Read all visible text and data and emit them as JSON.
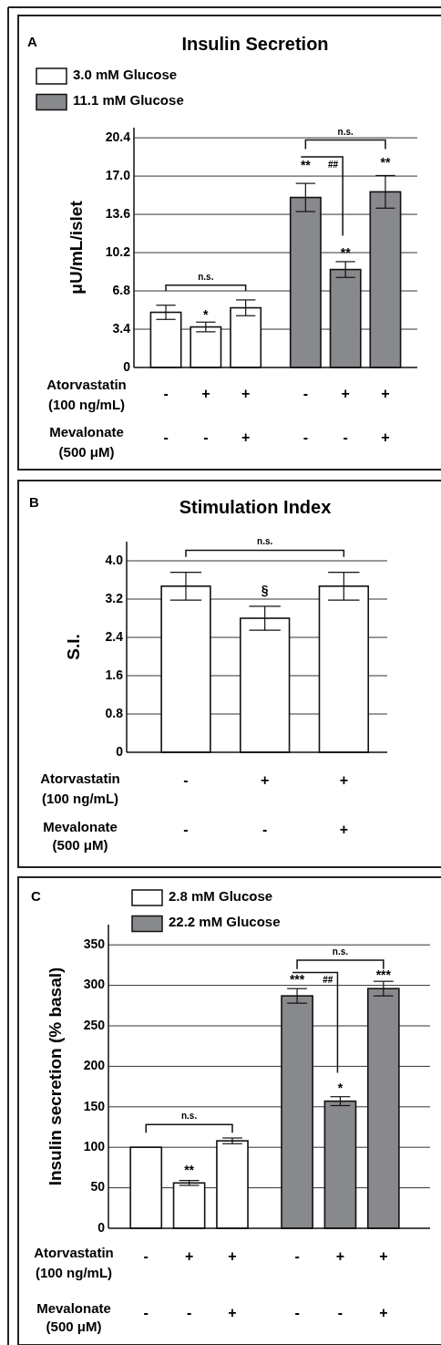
{
  "chart_data": [
    {
      "type": "bar",
      "title": "Insulin Secretion",
      "ylabel": "μU/mL/islet",
      "categories": [
        "-\n-",
        "+\n-",
        "+\n+",
        "-\n-",
        "+\n-",
        "+\n+"
      ],
      "series": [
        {
          "name": "3.0 mM Glucose",
          "color": "#ffffff",
          "values": [
            4.9,
            3.6,
            5.3,
            null,
            null,
            null
          ],
          "errors": [
            0.63,
            0.43,
            0.7,
            null,
            null,
            null
          ]
        },
        {
          "name": "11.1 mM Glucose",
          "color": "#88898c",
          "values": [
            null,
            null,
            null,
            15.1,
            8.7,
            15.6
          ],
          "errors": [
            null,
            null,
            null,
            1.25,
            0.7,
            1.45
          ]
        }
      ],
      "ylim": [
        0,
        21.3
      ],
      "yticks": [
        0,
        3.4,
        6.8,
        10.2,
        13.6,
        {
          "value": 17,
          "label": "17.0"
        },
        20.4
      ],
      "grid": "y",
      "legend": "top left",
      "annotations": [
        "A",
        "Atorvastatin\n(100 ng/mL)",
        "Mevalonate\n(500 μM)",
        "n.s.",
        "*",
        "n.s.",
        "**",
        "##",
        "**",
        "**"
      ]
    },
    {
      "type": "bar",
      "title": "Stimulation Index",
      "ylabel": "S.I.",
      "categories": [
        "-\n-",
        "+\n-",
        "+\n+"
      ],
      "series": [
        {
          "color": "#ffffff",
          "values": [
            3.47,
            2.8,
            3.47
          ],
          "errors": [
            0.29,
            0.25,
            0.29
          ]
        }
      ],
      "ylim": [
        0,
        4.4
      ],
      "yticks": [
        0,
        0.8,
        1.6,
        2.4,
        3.2,
        {
          "value": 4,
          "label": "4.0"
        }
      ],
      "grid": "y",
      "annotations": [
        "B",
        "Atorvastatin\n(100 ng/mL)",
        "Mevalonate\n(500 μM)",
        "n.s.",
        "§"
      ]
    },
    {
      "type": "bar",
      "ylabel": "Insulin secretion (% basal)",
      "categories": [
        "-\n-",
        "+\n-",
        "+\n+",
        "-\n-",
        "+\n-",
        "+\n+"
      ],
      "series": [
        {
          "name": "2.8 mM Glucose",
          "color": "#ffffff",
          "values": [
            100,
            56,
            108,
            null,
            null,
            null
          ],
          "errors": [
            null,
            3,
            3.5,
            null,
            null,
            null
          ]
        },
        {
          "name": "22.2 mM Glucose",
          "color": "#88898c",
          "values": [
            null,
            null,
            null,
            287,
            157,
            296
          ],
          "errors": [
            null,
            null,
            null,
            9,
            5.5,
            9
          ]
        }
      ],
      "ylim": [
        0,
        375
      ],
      "yticks": [
        0,
        50,
        100,
        150,
        200,
        250,
        300,
        350
      ],
      "grid": "y",
      "legend": "top left",
      "annotations": [
        "C",
        "Atorvastatin\n(100 ng/mL)",
        "Mevalonate\n(500 μM)",
        "n.s.",
        "**",
        "n.s.",
        "***",
        "##",
        "*",
        "***"
      ]
    }
  ]
}
